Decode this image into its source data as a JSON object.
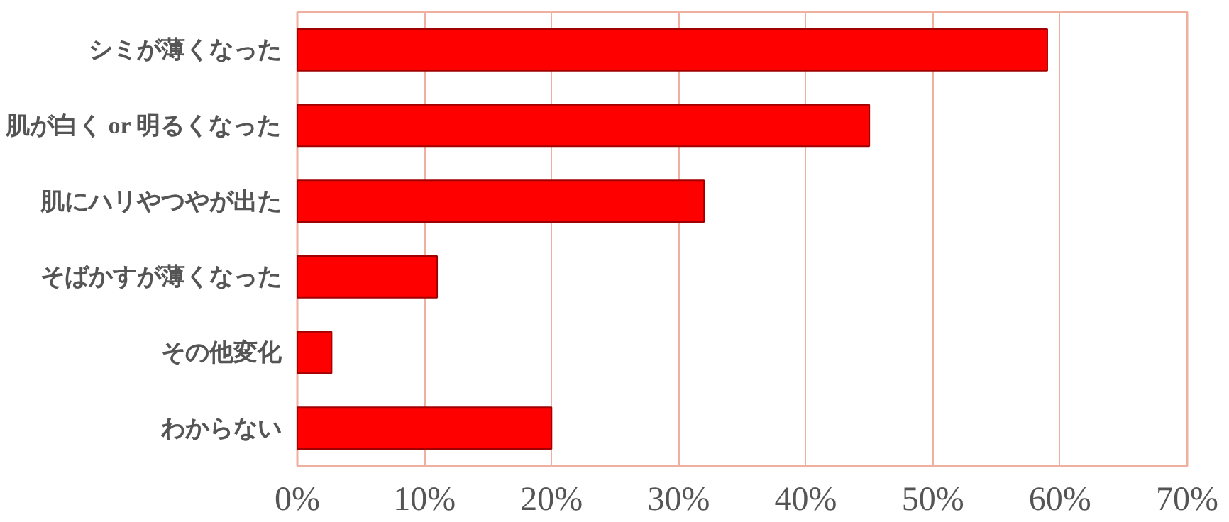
{
  "chart_data": {
    "type": "bar",
    "orientation": "horizontal",
    "categories": [
      "シミが薄くなった",
      "肌が白く or 明るくなった",
      "肌にハリやつやが出た",
      "そばかすが薄くなった",
      "その他変化",
      "わからない"
    ],
    "values": [
      59,
      45,
      32,
      11,
      2.7,
      20
    ],
    "color": "#ff0000",
    "xlim": [
      0,
      70
    ],
    "xticks": [
      {
        "value": 0,
        "label": "0%"
      },
      {
        "value": 10,
        "label": "10%"
      },
      {
        "value": 20,
        "label": "20%"
      },
      {
        "value": 30,
        "label": "30%"
      },
      {
        "value": 40,
        "label": "40%"
      },
      {
        "value": 50,
        "label": "50%"
      },
      {
        "value": 60,
        "label": "60%"
      },
      {
        "value": 70,
        "label": "70%"
      }
    ],
    "grid": "x"
  }
}
